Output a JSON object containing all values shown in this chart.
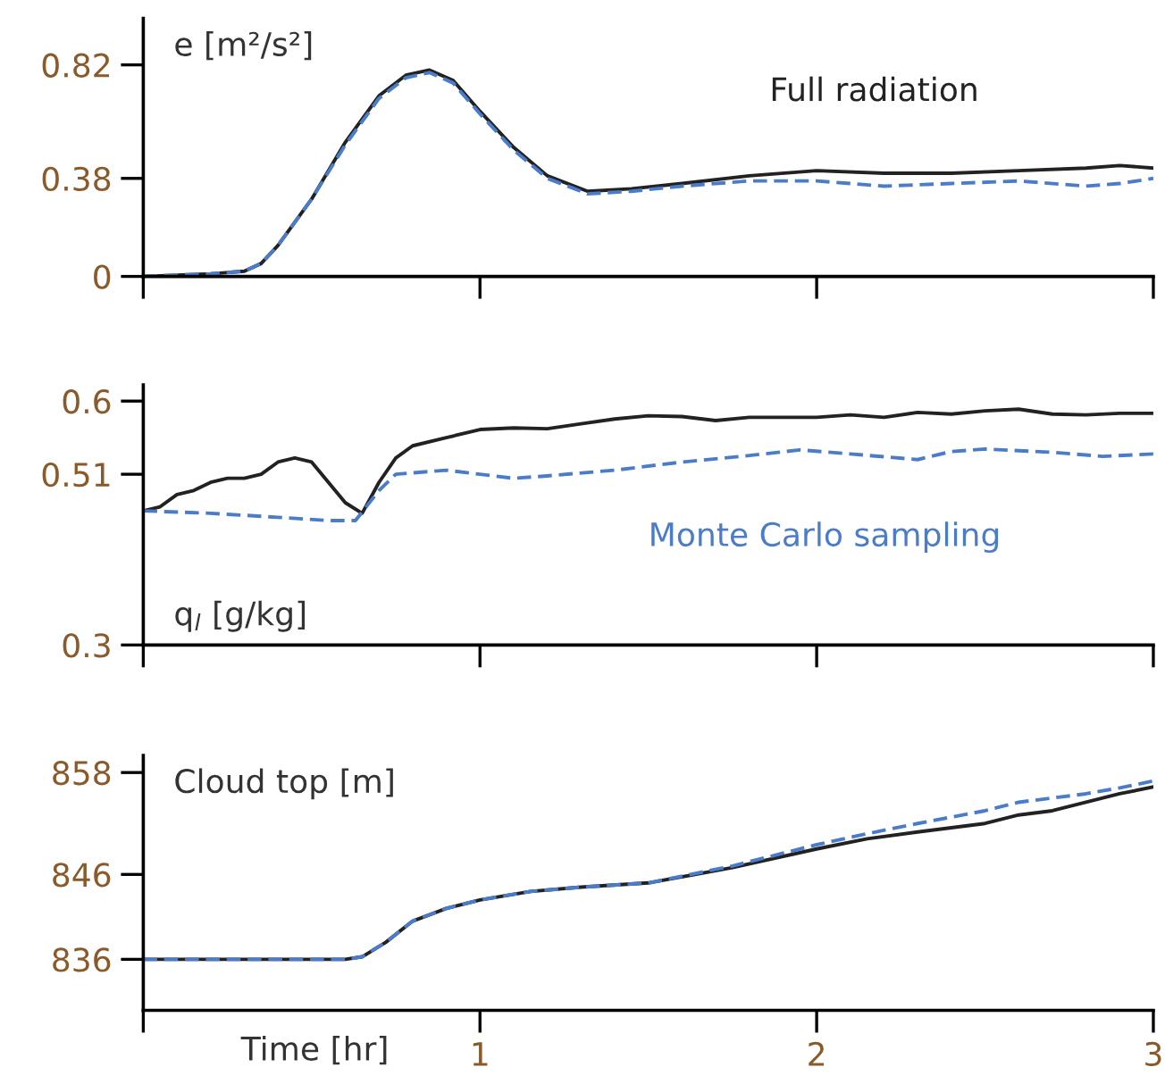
{
  "chart_data": [
    {
      "type": "line",
      "title": "e [m²/s²]",
      "xlim": [
        0,
        3
      ],
      "xticks": [
        {
          "value": 0,
          "label": null
        },
        {
          "value": 1,
          "label": null
        },
        {
          "value": 2,
          "label": null
        },
        {
          "value": 3,
          "label": null
        }
      ],
      "ylim": [
        0,
        1.0
      ],
      "yticks": [
        0,
        0.38,
        0.82
      ],
      "tick_labels": "y",
      "grid": false,
      "legend": false,
      "series": [
        {
          "name": "Full radiation",
          "color": "#222222",
          "line_style": "solid",
          "x": [
            0,
            0.2,
            0.3,
            0.35,
            0.4,
            0.5,
            0.6,
            0.7,
            0.78,
            0.85,
            0.92,
            1.0,
            1.1,
            1.2,
            1.32,
            1.45,
            1.6,
            1.8,
            2.0,
            2.2,
            2.4,
            2.6,
            2.8,
            2.9,
            3.0
          ],
          "values": [
            0,
            0.01,
            0.02,
            0.05,
            0.12,
            0.3,
            0.52,
            0.7,
            0.78,
            0.8,
            0.76,
            0.64,
            0.5,
            0.39,
            0.33,
            0.34,
            0.36,
            0.39,
            0.41,
            0.4,
            0.4,
            0.41,
            0.42,
            0.43,
            0.42
          ]
        },
        {
          "color": "#4a7cc9",
          "line_style": "dashed",
          "x": [
            0,
            0.2,
            0.3,
            0.35,
            0.4,
            0.5,
            0.6,
            0.7,
            0.78,
            0.85,
            0.92,
            1.0,
            1.1,
            1.2,
            1.32,
            1.45,
            1.6,
            1.8,
            2.0,
            2.2,
            2.4,
            2.6,
            2.8,
            2.9,
            3.0
          ],
          "values": [
            0,
            0.01,
            0.02,
            0.05,
            0.12,
            0.3,
            0.51,
            0.69,
            0.77,
            0.79,
            0.75,
            0.63,
            0.49,
            0.38,
            0.32,
            0.33,
            0.35,
            0.37,
            0.37,
            0.35,
            0.36,
            0.37,
            0.35,
            0.36,
            0.38
          ]
        }
      ]
    },
    {
      "type": "line",
      "title": "q$_{l}$ [g/kg]",
      "xlim": [
        0,
        3
      ],
      "xticks": [
        {
          "value": 0,
          "label": null
        },
        {
          "value": 1,
          "label": null
        },
        {
          "value": 2,
          "label": null
        },
        {
          "value": 3,
          "label": null
        }
      ],
      "ylim": [
        0.3,
        0.62
      ],
      "yticks": [
        0.3,
        0.51,
        0.6
      ],
      "tick_labels": "y",
      "grid": false,
      "legend": false,
      "series": [
        {
          "color": "#222222",
          "line_style": "solid",
          "x": [
            0,
            0.05,
            0.1,
            0.15,
            0.2,
            0.25,
            0.3,
            0.35,
            0.4,
            0.45,
            0.5,
            0.55,
            0.6,
            0.65,
            0.7,
            0.75,
            0.8,
            0.9,
            1.0,
            1.1,
            1.2,
            1.3,
            1.4,
            1.5,
            1.6,
            1.7,
            1.8,
            1.9,
            2.0,
            2.1,
            2.2,
            2.3,
            2.4,
            2.5,
            2.6,
            2.7,
            2.8,
            2.9,
            3.0
          ],
          "values": [
            0.465,
            0.47,
            0.485,
            0.49,
            0.5,
            0.505,
            0.505,
            0.51,
            0.525,
            0.53,
            0.525,
            0.5,
            0.475,
            0.462,
            0.5,
            0.53,
            0.545,
            0.555,
            0.565,
            0.567,
            0.566,
            0.572,
            0.578,
            0.582,
            0.581,
            0.576,
            0.58,
            0.58,
            0.58,
            0.583,
            0.58,
            0.586,
            0.584,
            0.588,
            0.59,
            0.584,
            0.583,
            0.585,
            0.585
          ]
        },
        {
          "name": "Monte Carlo sampling",
          "color": "#4a7cc9",
          "line_style": "dashed",
          "x": [
            0,
            0.2,
            0.4,
            0.55,
            0.63,
            0.7,
            0.75,
            0.9,
            1.0,
            1.1,
            1.2,
            1.4,
            1.6,
            1.8,
            1.95,
            2.1,
            2.3,
            2.4,
            2.5,
            2.7,
            2.85,
            3.0
          ],
          "values": [
            0.465,
            0.462,
            0.457,
            0.453,
            0.453,
            0.49,
            0.51,
            0.515,
            0.51,
            0.505,
            0.508,
            0.515,
            0.525,
            0.533,
            0.54,
            0.535,
            0.528,
            0.538,
            0.541,
            0.537,
            0.532,
            0.535
          ]
        }
      ]
    },
    {
      "type": "line",
      "title": "Cloud top [m]",
      "xlabel": "Time [hr]",
      "xlim": [
        0,
        3
      ],
      "xticks": [
        {
          "value": 0,
          "label": null
        },
        1,
        2,
        3
      ],
      "ylim": [
        830,
        860
      ],
      "yticks": [
        836,
        846,
        858
      ],
      "grid": false,
      "legend": false,
      "series": [
        {
          "color": "#222222",
          "line_style": "solid",
          "x": [
            0,
            0.3,
            0.6,
            0.65,
            0.72,
            0.8,
            0.9,
            1.0,
            1.15,
            1.3,
            1.5,
            1.75,
            2.0,
            2.15,
            2.3,
            2.5,
            2.6,
            2.7,
            2.8,
            2.9,
            3.0
          ],
          "values": [
            836,
            836,
            836,
            836.3,
            838,
            840.5,
            842,
            843,
            844,
            844.5,
            845,
            846.8,
            849,
            850.2,
            851,
            852,
            853,
            853.5,
            854.5,
            855.5,
            856.3
          ]
        },
        {
          "color": "#4a7cc9",
          "line_style": "dashed",
          "x": [
            0,
            0.3,
            0.6,
            0.65,
            0.72,
            0.8,
            0.9,
            1.0,
            1.15,
            1.3,
            1.5,
            1.75,
            2.0,
            2.15,
            2.3,
            2.5,
            2.6,
            2.7,
            2.8,
            2.9,
            3.0
          ],
          "values": [
            836,
            836,
            836,
            836.3,
            838,
            840.5,
            842,
            843,
            844,
            844.5,
            845,
            847,
            849.5,
            850.8,
            852,
            853.5,
            854.5,
            855,
            855.5,
            856.2,
            857
          ]
        }
      ]
    }
  ]
}
